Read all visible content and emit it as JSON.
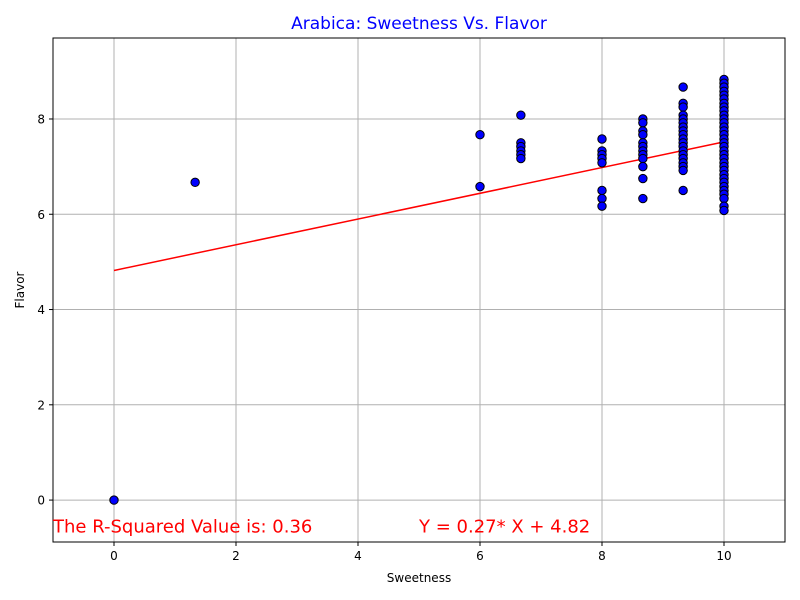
{
  "chart_data": {
    "type": "scatter",
    "title": "Arabica: Sweetness Vs. Flavor",
    "title_color": "#0000ff",
    "xlabel": "Sweetness",
    "ylabel": "Flavor",
    "xlim": [
      -1,
      11
    ],
    "ylim": [
      -0.88,
      9.7
    ],
    "xticks": [
      0,
      2,
      4,
      6,
      8,
      10
    ],
    "yticks": [
      0,
      2,
      4,
      6,
      8
    ],
    "grid": true,
    "point_color": "#0000ff",
    "point_edge_color": "#000000",
    "line_color": "#ff0000",
    "points": [
      [
        0,
        0
      ],
      [
        1.33,
        6.67
      ],
      [
        6,
        7.67
      ],
      [
        6,
        6.58
      ],
      [
        6.67,
        8.08
      ],
      [
        6.67,
        7.5
      ],
      [
        6.67,
        7.42
      ],
      [
        6.67,
        7.33
      ],
      [
        6.67,
        7.25
      ],
      [
        6.67,
        7.17
      ],
      [
        8,
        7.58
      ],
      [
        8,
        7.33
      ],
      [
        8,
        7.25
      ],
      [
        8,
        7.17
      ],
      [
        8,
        7.08
      ],
      [
        8,
        6.5
      ],
      [
        8,
        6.33
      ],
      [
        8,
        6.17
      ],
      [
        8.67,
        8.0
      ],
      [
        8.67,
        7.92
      ],
      [
        8.67,
        7.75
      ],
      [
        8.67,
        7.67
      ],
      [
        8.67,
        7.5
      ],
      [
        8.67,
        7.42
      ],
      [
        8.67,
        7.33
      ],
      [
        8.67,
        7.25
      ],
      [
        8.67,
        7.17
      ],
      [
        8.67,
        7.0
      ],
      [
        8.67,
        6.75
      ],
      [
        8.67,
        6.33
      ],
      [
        9.33,
        8.67
      ],
      [
        9.33,
        8.33
      ],
      [
        9.33,
        8.25
      ],
      [
        9.33,
        8.08
      ],
      [
        9.33,
        8.0
      ],
      [
        9.33,
        7.92
      ],
      [
        9.33,
        7.83
      ],
      [
        9.33,
        7.75
      ],
      [
        9.33,
        7.67
      ],
      [
        9.33,
        7.58
      ],
      [
        9.33,
        7.5
      ],
      [
        9.33,
        7.42
      ],
      [
        9.33,
        7.33
      ],
      [
        9.33,
        7.25
      ],
      [
        9.33,
        7.17
      ],
      [
        9.33,
        7.08
      ],
      [
        9.33,
        7.0
      ],
      [
        9.33,
        6.92
      ],
      [
        9.33,
        6.5
      ],
      [
        10,
        8.83
      ],
      [
        10,
        8.75
      ],
      [
        10,
        8.67
      ],
      [
        10,
        8.58
      ],
      [
        10,
        8.5
      ],
      [
        10,
        8.42
      ],
      [
        10,
        8.33
      ],
      [
        10,
        8.25
      ],
      [
        10,
        8.17
      ],
      [
        10,
        8.08
      ],
      [
        10,
        8.0
      ],
      [
        10,
        7.92
      ],
      [
        10,
        7.83
      ],
      [
        10,
        7.75
      ],
      [
        10,
        7.67
      ],
      [
        10,
        7.58
      ],
      [
        10,
        7.5
      ],
      [
        10,
        7.42
      ],
      [
        10,
        7.33
      ],
      [
        10,
        7.25
      ],
      [
        10,
        7.17
      ],
      [
        10,
        7.08
      ],
      [
        10,
        7.0
      ],
      [
        10,
        6.92
      ],
      [
        10,
        6.83
      ],
      [
        10,
        6.75
      ],
      [
        10,
        6.67
      ],
      [
        10,
        6.58
      ],
      [
        10,
        6.5
      ],
      [
        10,
        6.42
      ],
      [
        10,
        6.33
      ],
      [
        10,
        6.17
      ],
      [
        10,
        6.08
      ]
    ],
    "regression": {
      "slope": 0.27,
      "intercept": 4.82,
      "x_range": [
        0,
        10
      ]
    },
    "annotations": [
      {
        "text": "The R-Squared Value is: 0.36",
        "x": -1.0,
        "y": -0.68,
        "color": "#ff0000"
      },
      {
        "text": "Y = 0.27* X + 4.82",
        "x": 5.0,
        "y": -0.68,
        "color": "#ff0000"
      }
    ]
  }
}
